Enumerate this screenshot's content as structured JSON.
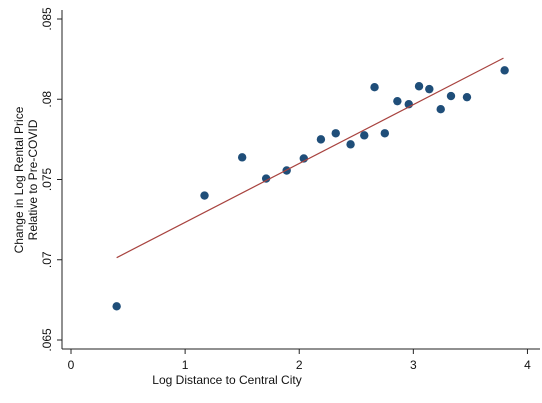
{
  "chart_data": {
    "type": "scatter",
    "xlabel": "Log Distance to Central City",
    "ylabel": [
      "Change in Log Rental Price",
      "Relative to Pre-COVID"
    ],
    "xlim": [
      -0.079,
      4.11
    ],
    "ylim": [
      0.06444,
      0.08556
    ],
    "xticks": [
      0,
      1,
      2,
      3,
      4
    ],
    "yticks": [
      {
        "value": 0.065,
        "label": ".065"
      },
      {
        "value": 0.07,
        "label": ".07"
      },
      {
        "value": 0.075,
        "label": ".075"
      },
      {
        "value": 0.08,
        "label": ".08"
      },
      {
        "value": 0.085,
        "label": ".085"
      }
    ],
    "grid": false,
    "series": [
      {
        "type": "scatter",
        "color": "#1f4e79",
        "x": [
          0.4,
          1.17,
          1.5,
          1.71,
          1.89,
          2.04,
          2.19,
          2.32,
          2.45,
          2.57,
          2.66,
          2.75,
          2.86,
          2.96,
          3.05,
          3.14,
          3.24,
          3.33,
          3.47,
          3.8
        ],
        "values": [
          0.0671,
          0.074,
          0.07638,
          0.07506,
          0.07556,
          0.07631,
          0.0775,
          0.07788,
          0.07719,
          0.07775,
          0.08075,
          0.07788,
          0.07988,
          0.07969,
          0.08081,
          0.08063,
          0.07938,
          0.0802,
          0.08013,
          0.0818
        ]
      },
      {
        "type": "line",
        "color": "#a8433f",
        "x": [
          0.4,
          3.79
        ],
        "values": [
          0.07013,
          0.08256
        ]
      }
    ]
  }
}
